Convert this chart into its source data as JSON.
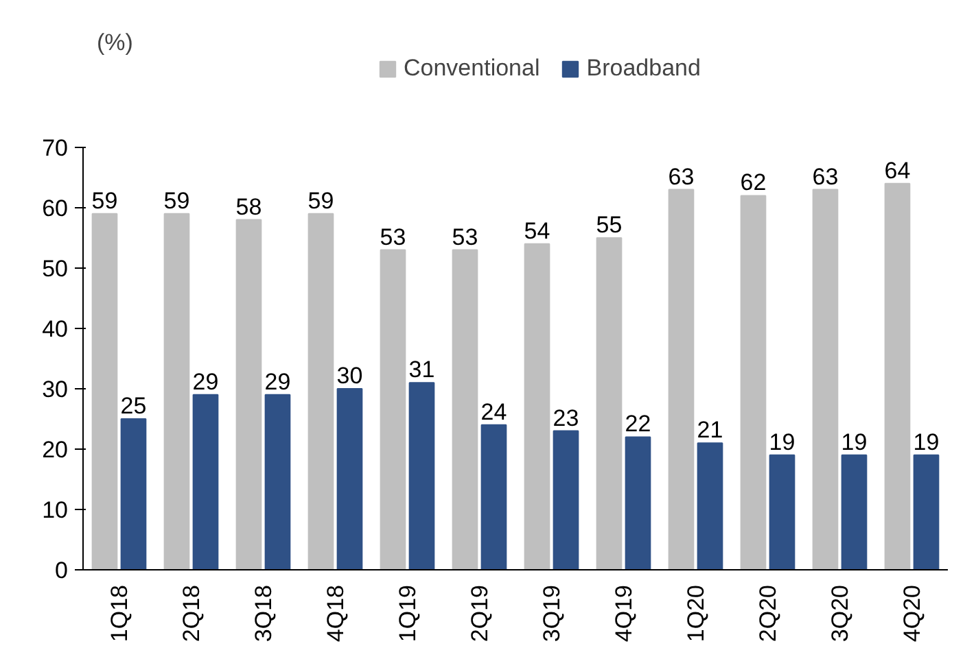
{
  "chart_data": {
    "type": "bar",
    "ylabel": "(%)",
    "categories": [
      "1Q18",
      "2Q18",
      "3Q18",
      "4Q18",
      "1Q19",
      "2Q19",
      "3Q19",
      "4Q19",
      "1Q20",
      "2Q20",
      "3Q20",
      "4Q20"
    ],
    "series": [
      {
        "name": "Conventional",
        "color": "#bfbfbf",
        "values": [
          59,
          59,
          58,
          59,
          53,
          53,
          54,
          55,
          63,
          62,
          63,
          64
        ]
      },
      {
        "name": "Broadband",
        "color": "#2f5186",
        "values": [
          25,
          29,
          29,
          30,
          31,
          24,
          23,
          22,
          21,
          19,
          19,
          19
        ]
      }
    ],
    "ylim": [
      0,
      70
    ],
    "yticks": [
      0,
      10,
      20,
      30,
      40,
      50,
      60,
      70
    ],
    "grid": false,
    "legend": "top",
    "data_labels": true
  }
}
